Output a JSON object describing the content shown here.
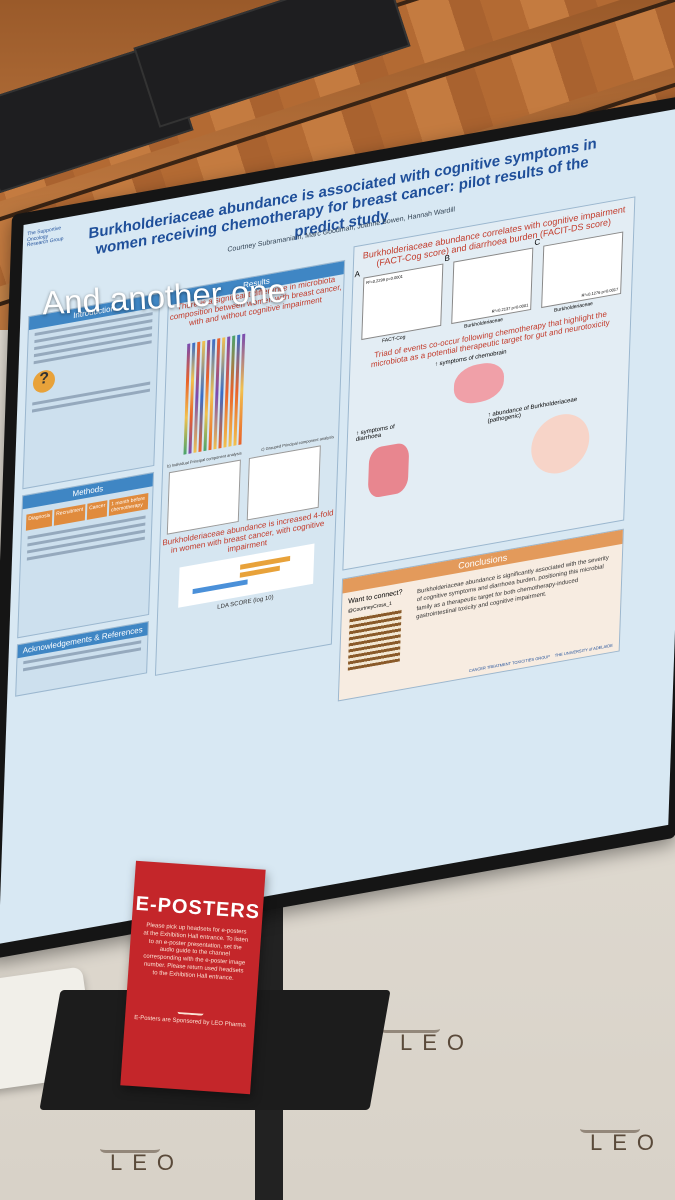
{
  "overlay_caption": "And another one",
  "poster": {
    "title": "Burkholderiaceae abundance is associated with cognitive symptoms in women receiving chemotherapy for breast cancer: pilot results of the predict study",
    "authors": "Courtney Subramaniam, Marc Goodman, Joanne Bowen, Hannah Wardill",
    "logo_text": "The Supportive Oncology Research Group",
    "intro_header": "Introduction",
    "methods_header": "Methods",
    "methods_steps": [
      "Diagnosis",
      "Recruitment",
      "Cancer",
      "1 month before chemotherapy"
    ],
    "ack_header": "Acknowledgements & References",
    "results_header": "Results",
    "results_subtitle": "There is a significant difference in microbiota composition between women with breast cancer, with and without cognitive impairment",
    "pca_label_b": "b) Individual Principal component analysis",
    "pca_label_c": "c) Grouped Principal component analysis",
    "lefse_subtitle": "Burkholderiaceae abundance is increased 4-fold in women with breast cancer, with cognitive impairment",
    "lefse_axis": "LDA SCORE (log 10)",
    "lefse_ticks": [
      "-4",
      "-3",
      "-2",
      "-1",
      "0",
      "1",
      "2",
      "3",
      "4",
      "5"
    ],
    "corr_title": "Burkholderiaceae abundance correlates with cognitive impairment (FACT-Cog score) and diarrhoea burden (FACIT-DS score)",
    "corr_panels": [
      {
        "letter": "A",
        "ylabel": "FACIT-DS",
        "xlabel": "FACT-Cog",
        "stat": "R²=0.2299 p=0.0001"
      },
      {
        "letter": "B",
        "ylabel": "FACT-Cog",
        "xlabel": "Burkholderiaceae",
        "stat": "R²=0.2137 p=0.0001"
      },
      {
        "letter": "C",
        "ylabel": "FACIT-DS",
        "xlabel": "Burkholderiaceae",
        "stat": "R²=0.1276 p=0.0017"
      }
    ],
    "triad_title": "Triad of events co-occur following chemotherapy that highlight the microbiota as a potential therapeutic target for gut and neurotoxicity",
    "triad_labels": [
      "↑ symptoms of chemobrain",
      "↑ symptoms of diarrhoea",
      "↑ abundance of Burkholderiaceae (pathogenic)"
    ],
    "connect_label": "Want to connect?",
    "connect_handle": "@CourtneyCross_1",
    "conclusions_header": "Conclusions",
    "conclusions_text": "Burkholderiaceae abundance is significantly associated with the severity of cognitive symptoms and diarrhoea burden, positioning this microbial family as a therapeutic target for both chemotherapy-induced gastrointestinal toxicity and cognitive impairment.",
    "footer_logos": [
      "CANCER TREATMENT TOXICITIES GROUP",
      "THE UNIVERSITY of ADELAIDE"
    ]
  },
  "sign": {
    "title": "E-POSTERS",
    "body": "Please pick up headsets for e-posters at the Exhibition Hall entrance. To listen to an e-poster presentation, set the audio guide to the channel corresponding with the e-poster image number. Please return used headsets to the Exhibition Hall entrance.",
    "sponsor": "E-Posters are Sponsored by LEO Pharma"
  },
  "wall_brand": "LEO"
}
